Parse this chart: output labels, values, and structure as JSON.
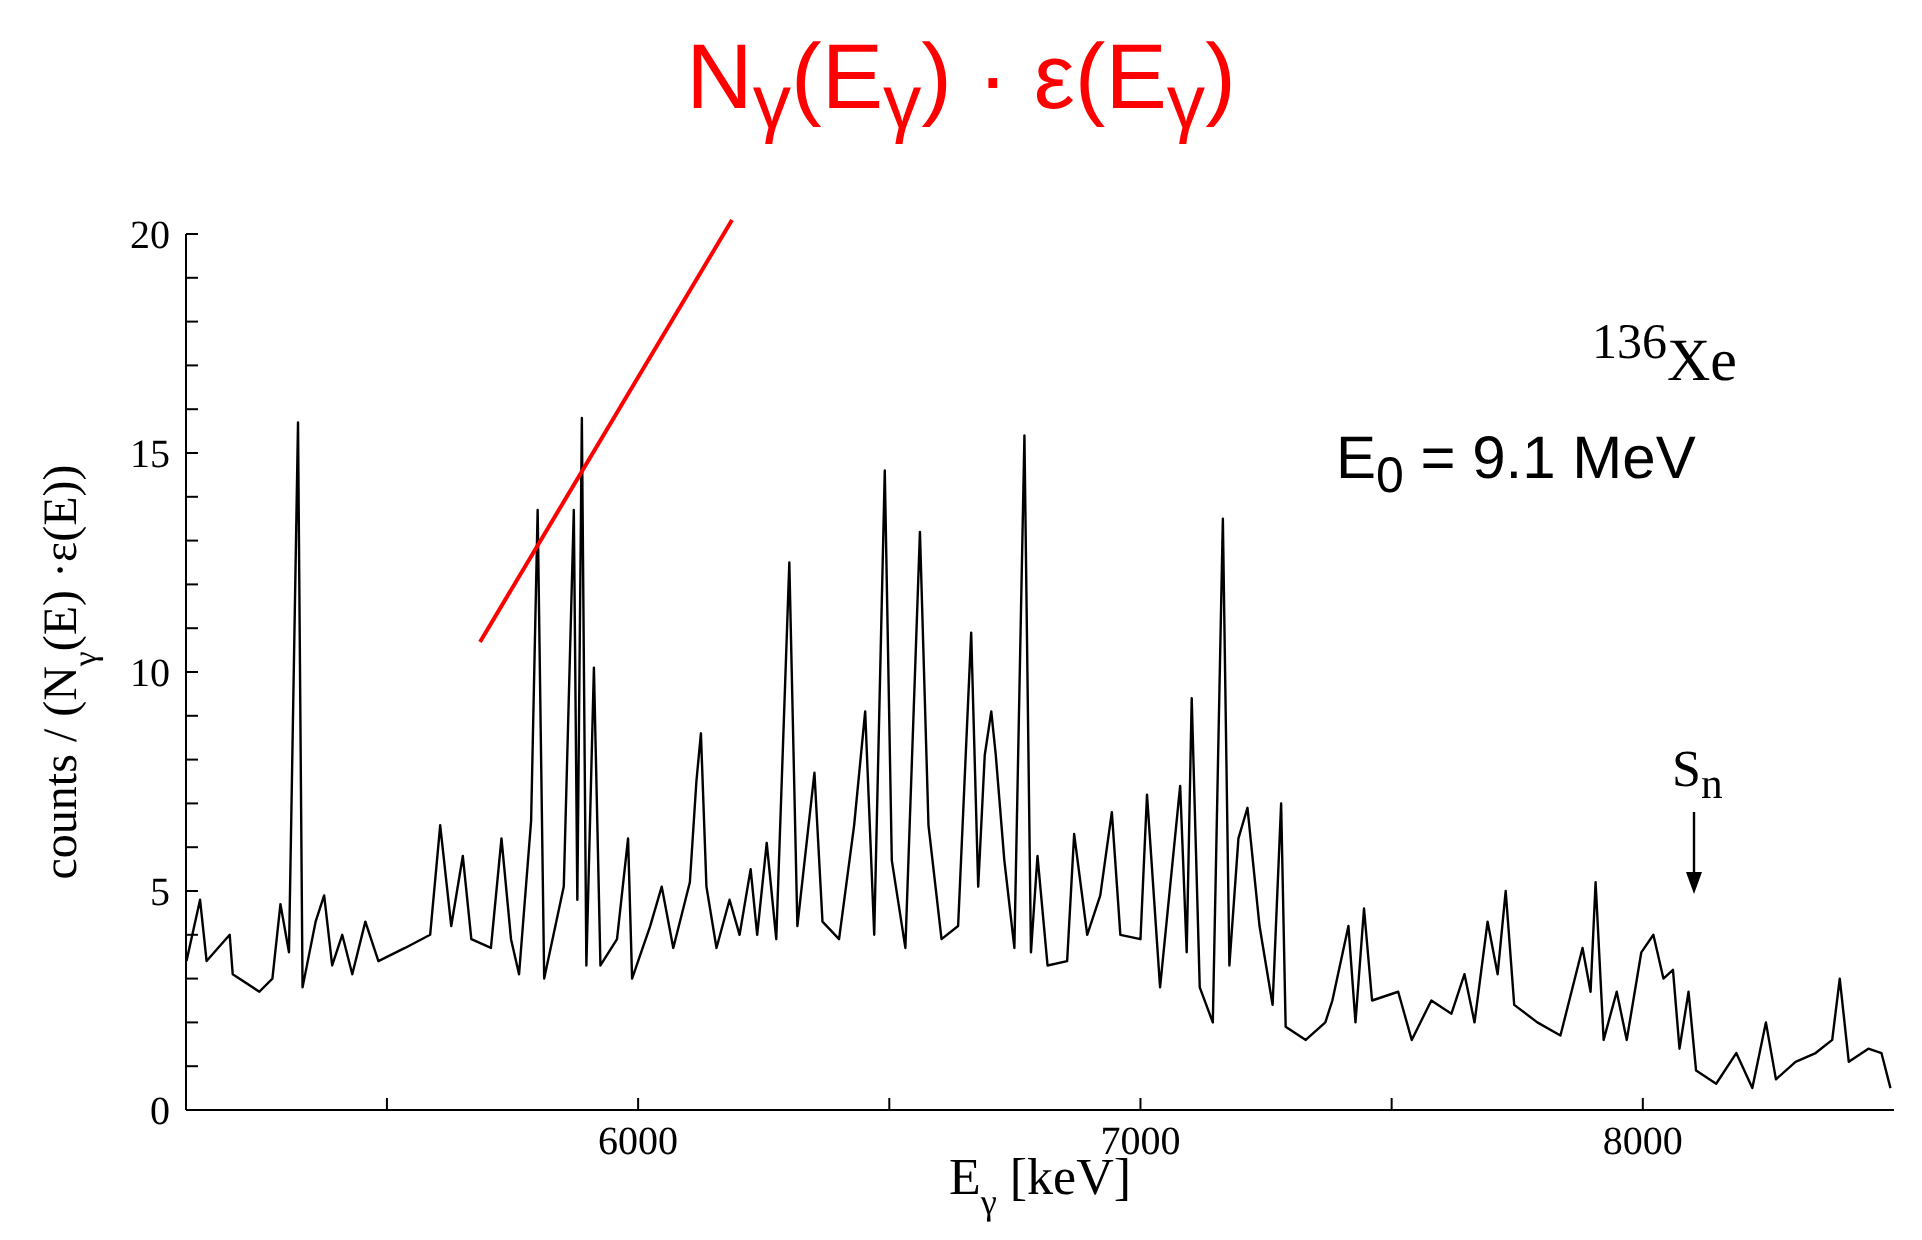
{
  "chart_data": {
    "type": "line",
    "title": "N$_{γ}$(E$_{γ}$) · ε(E$_{γ}$)",
    "xlabel": "E$_{γ}$ [keV]",
    "ylabel": "counts / (N$_{γ}$(E) ·ε(E))",
    "annotations": [
      "$^{136}$Xe",
      "E$_{0}$ = 9.1 MeV",
      "S$_{n}$"
    ],
    "x": [
      5101,
      5128,
      5141,
      5187,
      5193,
      5246,
      5272,
      5288,
      5305,
      5323,
      5332,
      5358,
      5375,
      5391,
      5411,
      5431,
      5457,
      5483,
      5536,
      5586,
      5606,
      5628,
      5651,
      5668,
      5707,
      5728,
      5747,
      5763,
      5787,
      5800,
      5813,
      5852,
      5872,
      5879,
      5888,
      5897,
      5912,
      5925,
      5958,
      5980,
      5988,
      6024,
      6047,
      6070,
      6103,
      6116,
      6125,
      6136,
      6156,
      6182,
      6202,
      6224,
      6237,
      6256,
      6275,
      6301,
      6317,
      6351,
      6367,
      6400,
      6430,
      6452,
      6470,
      6491,
      6505,
      6532,
      6561,
      6578,
      6604,
      6637,
      6663,
      6677,
      6690,
      6703,
      6712,
      6729,
      6749,
      6769,
      6782,
      6795,
      6815,
      6854,
      6868,
      6894,
      6920,
      6943,
      6960,
      7000,
      7013,
      7039,
      7079,
      7092,
      7102,
      7118,
      7144,
      7164,
      7177,
      7195,
      7213,
      7237,
      7263,
      7280,
      7289,
      7329,
      7368,
      7382,
      7414,
      7428,
      7445,
      7461,
      7513,
      7540,
      7579,
      7619,
      7645,
      7665,
      7691,
      7711,
      7727,
      7744,
      7790,
      7836,
      7880,
      7896,
      7906,
      7922,
      7948,
      7968,
      7997,
      8021,
      8041,
      8060,
      8073,
      8091,
      8106,
      8146,
      8186,
      8218,
      8245,
      8265,
      8304,
      8344,
      8377,
      8392,
      8410,
      8449,
      8475,
      8493
    ],
    "series": [
      {
        "color": "#000000",
        "values": [
          3.4,
          4.8,
          3.4,
          4.0,
          3.1,
          2.7,
          3.0,
          4.7,
          3.6,
          15.7,
          2.8,
          4.3,
          4.9,
          3.3,
          4.0,
          3.1,
          4.3,
          3.4,
          3.7,
          4.0,
          6.5,
          4.2,
          5.8,
          3.9,
          3.7,
          6.2,
          3.9,
          3.1,
          6.6,
          13.7,
          3.0,
          5.1,
          13.7,
          4.8,
          15.8,
          3.3,
          10.1,
          3.3,
          3.9,
          6.2,
          3.0,
          4.2,
          5.1,
          3.7,
          5.2,
          7.5,
          8.6,
          5.1,
          3.7,
          4.8,
          4.0,
          5.5,
          4.0,
          6.1,
          3.9,
          12.5,
          4.2,
          7.7,
          4.3,
          3.9,
          6.5,
          9.1,
          4.0,
          14.6,
          5.7,
          3.7,
          13.2,
          6.5,
          3.9,
          4.2,
          10.9,
          5.1,
          8.1,
          9.1,
          8.1,
          5.7,
          3.7,
          15.4,
          3.6,
          5.8,
          3.3,
          3.4,
          6.3,
          4.0,
          4.9,
          6.8,
          4.0,
          3.9,
          7.2,
          2.8,
          7.4,
          3.6,
          9.4,
          2.8,
          2.0,
          13.5,
          3.3,
          6.2,
          6.9,
          4.2,
          2.4,
          7.0,
          1.9,
          1.6,
          2.0,
          2.5,
          4.2,
          2.0,
          4.6,
          2.5,
          2.7,
          1.6,
          2.5,
          2.2,
          3.1,
          2.0,
          4.3,
          3.1,
          5.0,
          2.4,
          2.0,
          1.7,
          3.7,
          2.7,
          5.2,
          1.6,
          2.7,
          1.6,
          3.6,
          4.0,
          3.0,
          3.2,
          1.4,
          2.7,
          0.9,
          0.6,
          1.3,
          0.5,
          2.0,
          0.7,
          1.1,
          1.3,
          1.6,
          3.0,
          1.1,
          1.4,
          1.3,
          0.5
        ]
      }
    ],
    "xlim": [
      5100,
      8500
    ],
    "xticks": [
      {
        "value": 5500,
        "label": null
      },
      6000,
      {
        "value": 6500,
        "label": null
      },
      7000,
      {
        "value": 7500,
        "label": null
      },
      8000
    ],
    "ylim": [
      0,
      20
    ],
    "yticks": [
      0,
      {
        "value": 1,
        "label": null
      },
      {
        "value": 2,
        "label": null
      },
      {
        "value": 3,
        "label": null
      },
      {
        "value": 4,
        "label": null
      },
      5,
      {
        "value": 6,
        "label": null
      },
      {
        "value": 7,
        "label": null
      },
      {
        "value": 8,
        "label": null
      },
      {
        "value": 9,
        "label": null
      },
      10,
      {
        "value": 11,
        "label": null
      },
      {
        "value": 12,
        "label": null
      },
      {
        "value": 13,
        "label": null
      },
      {
        "value": 14,
        "label": null
      },
      15,
      {
        "value": 16,
        "label": null
      },
      {
        "value": 17,
        "label": null
      },
      {
        "value": 18,
        "label": null
      },
      {
        "value": 19,
        "label": null
      },
      20
    ],
    "grid": false,
    "legend": false,
    "marker": "none",
    "line_style": "solid"
  }
}
